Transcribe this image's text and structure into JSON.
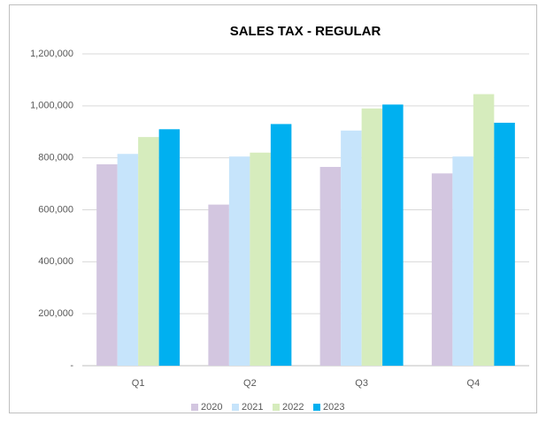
{
  "chart_data": {
    "type": "bar",
    "title": "SALES TAX - REGULAR",
    "categories": [
      "Q1",
      "Q2",
      "Q3",
      "Q4"
    ],
    "series": [
      {
        "name": "2020",
        "color": "#d3c6e0",
        "values": [
          775000,
          620000,
          765000,
          740000
        ]
      },
      {
        "name": "2021",
        "color": "#c6e4fb",
        "values": [
          815000,
          805000,
          905000,
          805000
        ]
      },
      {
        "name": "2022",
        "color": "#d6ecbd",
        "values": [
          880000,
          820000,
          990000,
          1045000
        ]
      },
      {
        "name": "2023",
        "color": "#00b0f0",
        "values": [
          910000,
          930000,
          1005000,
          935000
        ]
      }
    ],
    "ylim": [
      0,
      1200000
    ],
    "yticks": [
      {
        "value": 0,
        "label": "-"
      },
      {
        "value": 200000,
        "label": "200,000"
      },
      {
        "value": 400000,
        "label": "400,000"
      },
      {
        "value": 600000,
        "label": "600,000"
      },
      {
        "value": 800000,
        "label": "800,000"
      },
      {
        "value": 1000000,
        "label": "1,000,000"
      },
      {
        "value": 1200000,
        "label": "1,200,000"
      }
    ],
    "grid": true,
    "legend": "bottom"
  }
}
